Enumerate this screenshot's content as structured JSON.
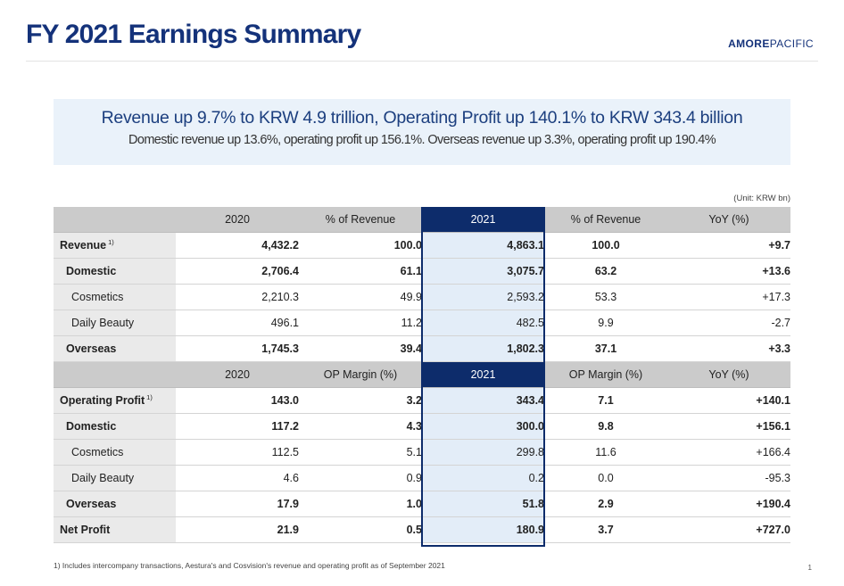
{
  "header": {
    "title": "FY 2021 Earnings Summary",
    "brand_part1": "AMORE",
    "brand_part2": "PACIFIC"
  },
  "summary": {
    "headline": "Revenue up 9.7% to KRW 4.9 trillion, Operating Profit up 140.1% to KRW 343.4 billion",
    "sub": "Domestic revenue up 13.6%, operating profit up 156.1%. Overseas revenue up 3.3%, operating profit up 190.4%"
  },
  "unit_label": "(Unit: KRW bn)",
  "table": {
    "revenue_header": [
      "",
      "2020",
      "% of Revenue",
      "2021",
      "% of Revenue",
      "YoY (%)"
    ],
    "revenue_rows": [
      {
        "label": "Revenue",
        "note": "1)",
        "v2020": "4,432.2",
        "pct2020": "100.0",
        "v2021": "4,863.1",
        "pct2021": "100.0",
        "yoy": "+9.7"
      },
      {
        "label": "Domestic",
        "note": "",
        "v2020": "2,706.4",
        "pct2020": "61.1",
        "v2021": "3,075.7",
        "pct2021": "63.2",
        "yoy": "+13.6"
      },
      {
        "label": "Cosmetics",
        "note": "",
        "v2020": "2,210.3",
        "pct2020": "49.9",
        "v2021": "2,593.2",
        "pct2021": "53.3",
        "yoy": "+17.3"
      },
      {
        "label": "Daily Beauty",
        "note": "",
        "v2020": "496.1",
        "pct2020": "11.2",
        "v2021": "482.5",
        "pct2021": "9.9",
        "yoy": "-2.7"
      },
      {
        "label": "Overseas",
        "note": "",
        "v2020": "1,745.3",
        "pct2020": "39.4",
        "v2021": "1,802.3",
        "pct2021": "37.1",
        "yoy": "+3.3"
      }
    ],
    "profit_header": [
      "",
      "2020",
      "OP Margin (%)",
      "2021",
      "OP Margin (%)",
      "YoY (%)"
    ],
    "profit_rows": [
      {
        "label": "Operating Profit",
        "note": "1)",
        "v2020": "143.0",
        "pct2020": "3.2",
        "v2021": "343.4",
        "pct2021": "7.1",
        "yoy": "+140.1"
      },
      {
        "label": "Domestic",
        "note": "",
        "v2020": "117.2",
        "pct2020": "4.3",
        "v2021": "300.0",
        "pct2021": "9.8",
        "yoy": "+156.1"
      },
      {
        "label": "Cosmetics",
        "note": "",
        "v2020": "112.5",
        "pct2020": "5.1",
        "v2021": "299.8",
        "pct2021": "11.6",
        "yoy": "+166.4"
      },
      {
        "label": "Daily Beauty",
        "note": "",
        "v2020": "4.6",
        "pct2020": "0.9",
        "v2021": "0.2",
        "pct2021": "0.0",
        "yoy": "-95.3"
      },
      {
        "label": "Overseas",
        "note": "",
        "v2020": "17.9",
        "pct2020": "1.0",
        "v2021": "51.8",
        "pct2021": "2.9",
        "yoy": "+190.4"
      },
      {
        "label": "Net Profit",
        "note": "",
        "v2020": "21.9",
        "pct2020": "0.5",
        "v2021": "180.9",
        "pct2021": "3.7",
        "yoy": "+727.0"
      }
    ]
  },
  "footnote": "1) Includes intercompany transactions, Aestura's and Cosvision's revenue and operating profit as of September 2021",
  "page_number": "1",
  "colors": {
    "brand_navy": "#14327a",
    "highlight_header": "#0d2c6b",
    "highlight_column": "#e3edf8",
    "summary_band": "#eaf2fa",
    "table_header": "#cbcbcb"
  }
}
